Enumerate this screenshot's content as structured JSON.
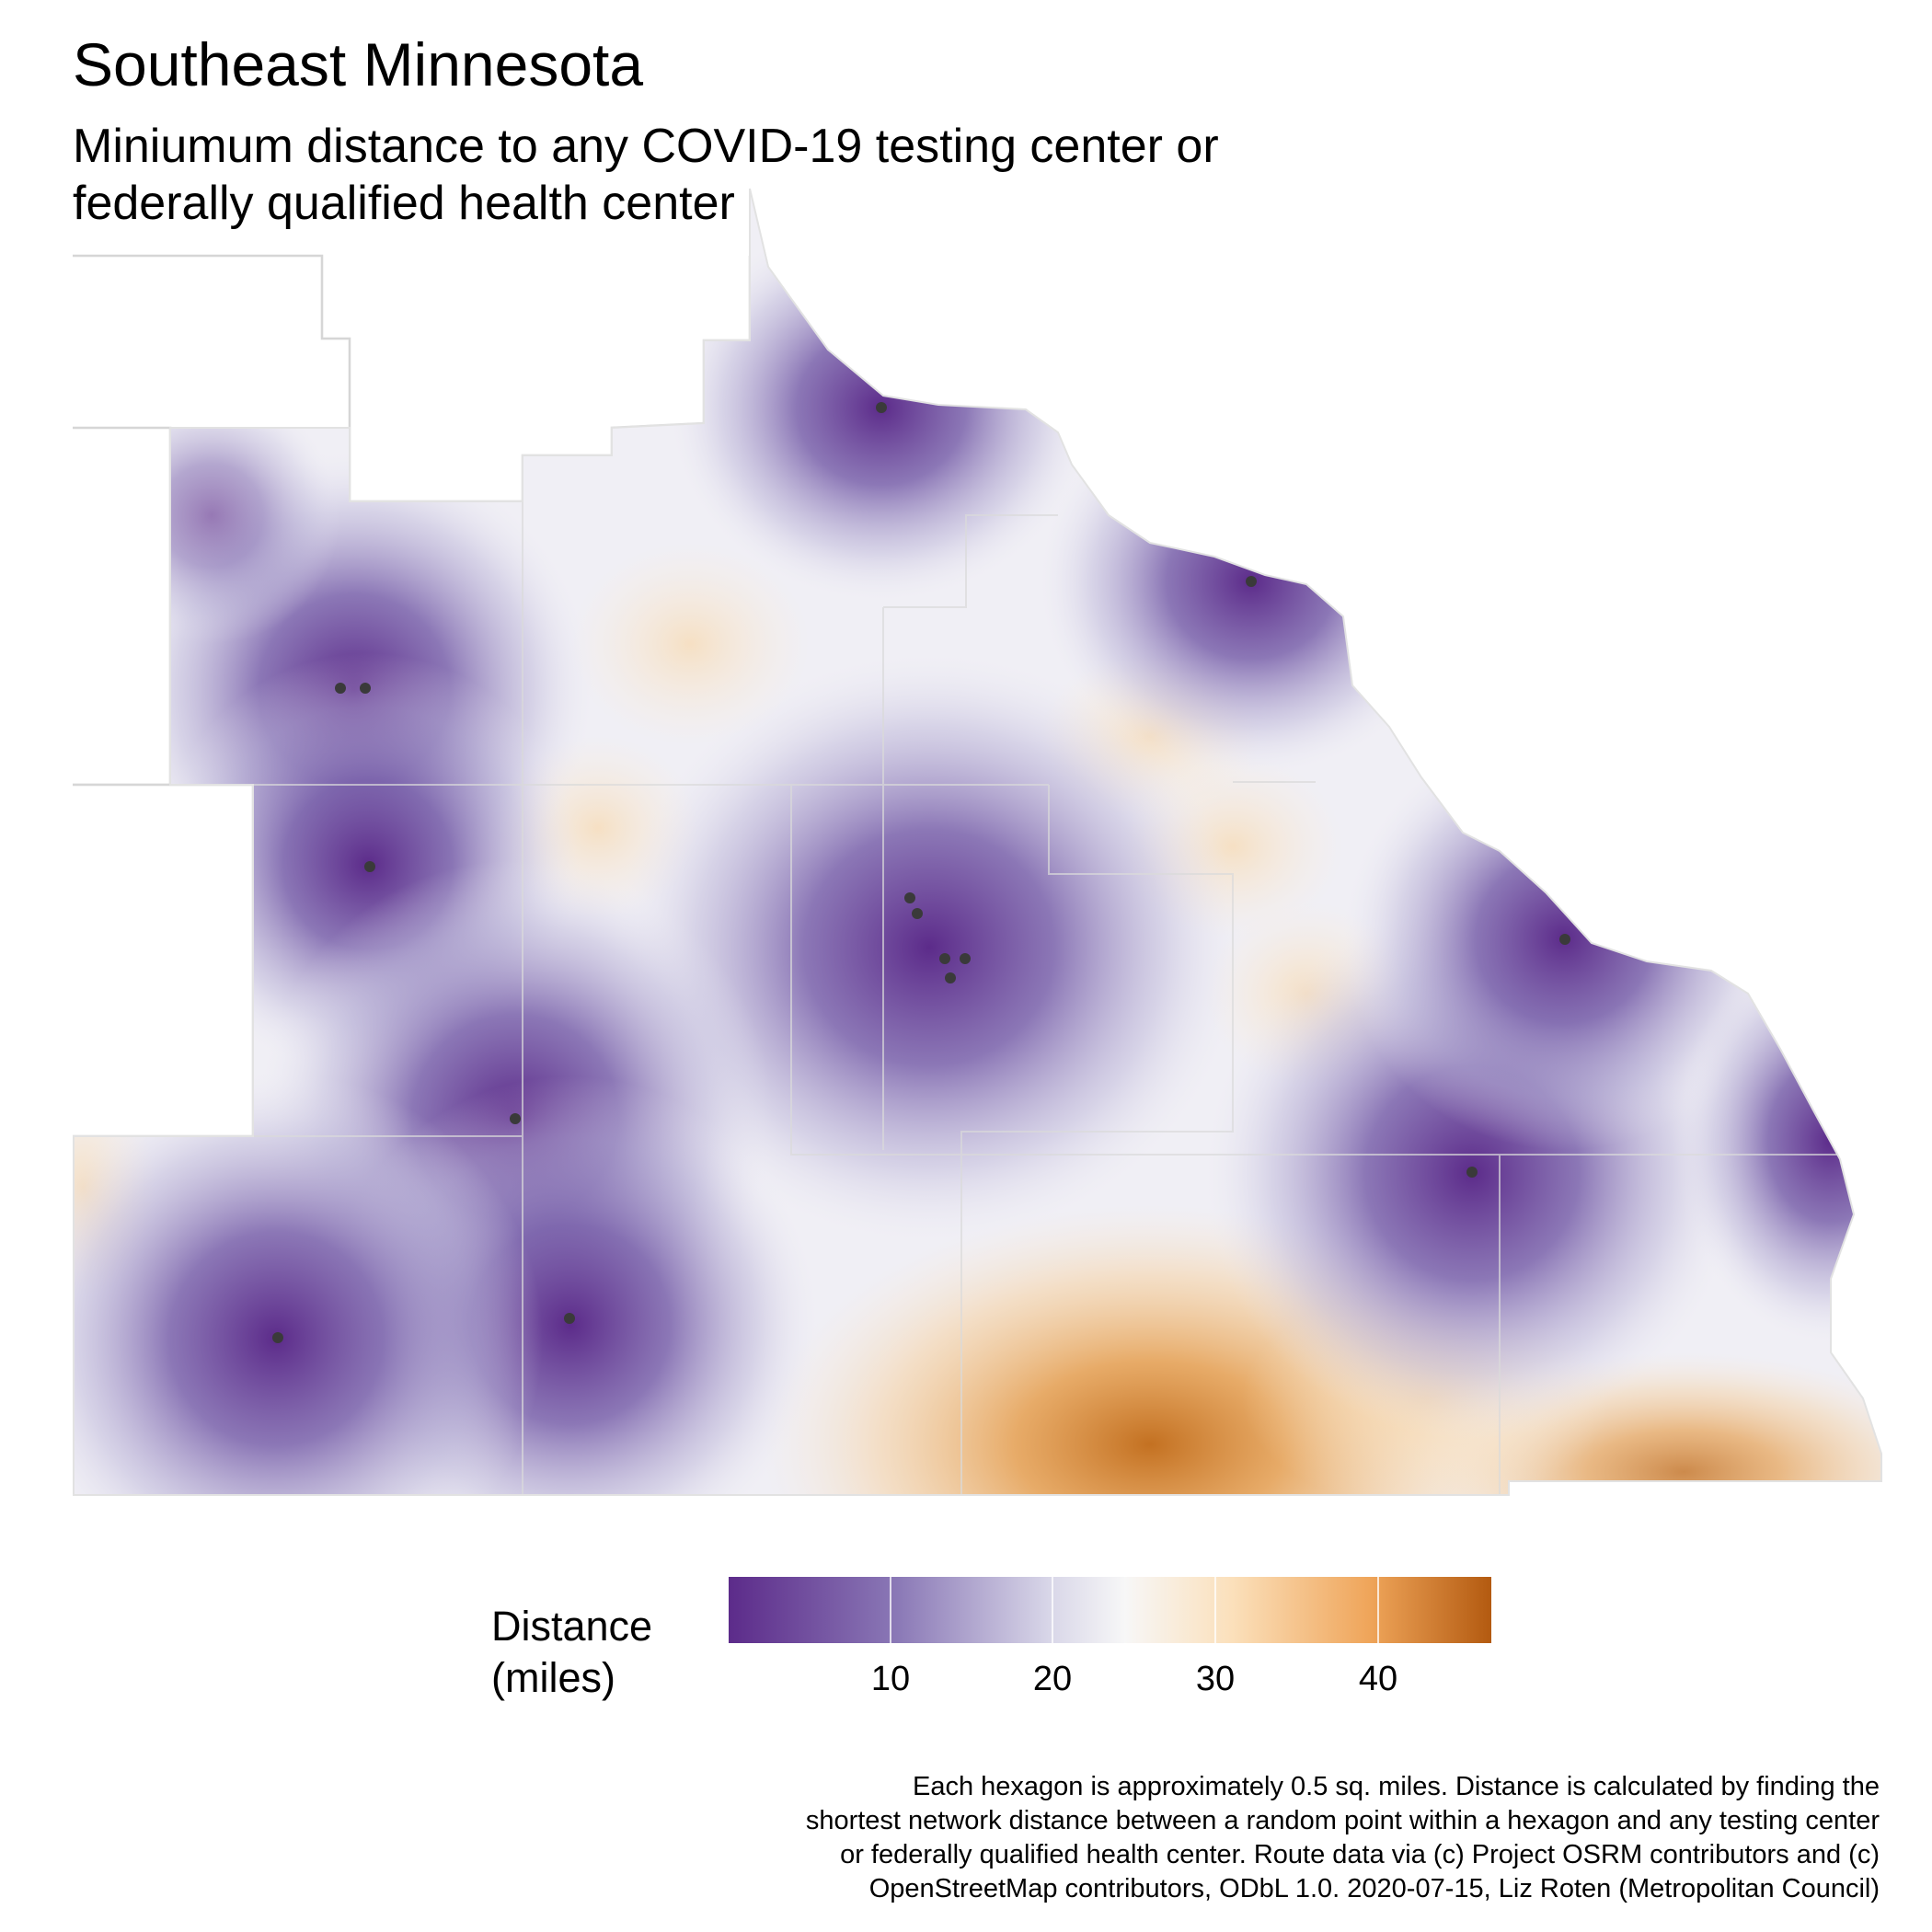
{
  "title": "Southeast Minnesota",
  "subtitle_line1": "Miniumum distance to any COVID-19 testing center or",
  "subtitle_line2": "federally qualified health center",
  "legend": {
    "title_line1": "Distance",
    "title_line2": "(miles)",
    "ticks": [
      "10",
      "20",
      "30",
      "40"
    ],
    "range": [
      0,
      47
    ],
    "colors": {
      "low": "#5c2b8a",
      "mid": "#f7f7f7",
      "high": "#b35a10",
      "center_dot": "#333333"
    }
  },
  "caption": {
    "line1": "Each hexagon is approximately 0.5 sq. miles. Distance is calculated by finding the",
    "line2": "shortest network distance between a random point within a hexagon and any testing center",
    "line3": "or federally qualified health center. Route data via (c) Project OSRM contributors and (c)",
    "line4": "OpenStreetMap contributors, ODbL 1.0. 2020-07-15, Liz Roten (Metropolitan Council)"
  }
}
